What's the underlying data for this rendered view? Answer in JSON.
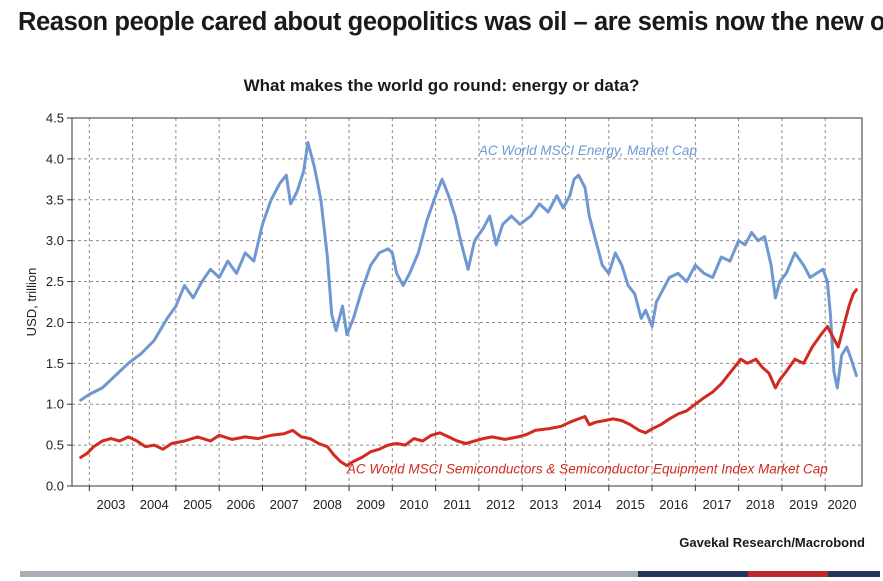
{
  "slide": {
    "title": "Reason people cared about geopolitics was oil – are semis now the new oil?",
    "source": "Gavekal Research/Macrobond"
  },
  "colors": {
    "energy": "#6f98d2",
    "semis": "#d12a1f",
    "grid": "#8c8c8c",
    "footer_gray": "#a9aeb5",
    "footer_navy": "#26355c",
    "footer_red": "#c0272d"
  },
  "chart_data": {
    "type": "line",
    "title": "What makes the world go round: energy or data?",
    "xlabel": "",
    "ylabel": "USD, trillion",
    "xlim": [
      2002.6,
      2020.85
    ],
    "ylim": [
      0,
      4.5
    ],
    "grid": true,
    "x_ticks": [
      "2003",
      "2004",
      "2005",
      "2006",
      "2007",
      "2008",
      "2009",
      "2010",
      "2011",
      "2012",
      "2013",
      "2014",
      "2015",
      "2016",
      "2017",
      "2018",
      "2019",
      "2020"
    ],
    "y_ticks": [
      "0.0",
      "0.5",
      "1.0",
      "1.5",
      "2.0",
      "2.5",
      "3.0",
      "3.5",
      "4.0",
      "4.5"
    ],
    "series": [
      {
        "name": "AC World MSCI Energy, Market Cap",
        "points": [
          [
            2002.8,
            1.05
          ],
          [
            2003.0,
            1.12
          ],
          [
            2003.3,
            1.2
          ],
          [
            2003.6,
            1.35
          ],
          [
            2003.9,
            1.5
          ],
          [
            2004.2,
            1.62
          ],
          [
            2004.5,
            1.78
          ],
          [
            2004.8,
            2.05
          ],
          [
            2005.0,
            2.2
          ],
          [
            2005.2,
            2.45
          ],
          [
            2005.4,
            2.3
          ],
          [
            2005.6,
            2.5
          ],
          [
            2005.8,
            2.65
          ],
          [
            2006.0,
            2.55
          ],
          [
            2006.2,
            2.75
          ],
          [
            2006.4,
            2.6
          ],
          [
            2006.6,
            2.85
          ],
          [
            2006.8,
            2.75
          ],
          [
            2007.0,
            3.2
          ],
          [
            2007.2,
            3.5
          ],
          [
            2007.4,
            3.7
          ],
          [
            2007.55,
            3.8
          ],
          [
            2007.65,
            3.45
          ],
          [
            2007.8,
            3.6
          ],
          [
            2007.95,
            3.85
          ],
          [
            2008.05,
            4.2
          ],
          [
            2008.2,
            3.9
          ],
          [
            2008.35,
            3.5
          ],
          [
            2008.5,
            2.8
          ],
          [
            2008.6,
            2.1
          ],
          [
            2008.7,
            1.9
          ],
          [
            2008.85,
            2.2
          ],
          [
            2008.95,
            1.85
          ],
          [
            2009.1,
            2.05
          ],
          [
            2009.3,
            2.4
          ],
          [
            2009.5,
            2.7
          ],
          [
            2009.7,
            2.85
          ],
          [
            2009.9,
            2.9
          ],
          [
            2010.0,
            2.85
          ],
          [
            2010.1,
            2.6
          ],
          [
            2010.25,
            2.45
          ],
          [
            2010.4,
            2.6
          ],
          [
            2010.6,
            2.85
          ],
          [
            2010.8,
            3.25
          ],
          [
            2011.0,
            3.55
          ],
          [
            2011.15,
            3.75
          ],
          [
            2011.3,
            3.55
          ],
          [
            2011.45,
            3.3
          ],
          [
            2011.6,
            2.95
          ],
          [
            2011.75,
            2.65
          ],
          [
            2011.9,
            3.0
          ],
          [
            2012.1,
            3.15
          ],
          [
            2012.25,
            3.3
          ],
          [
            2012.4,
            2.95
          ],
          [
            2012.55,
            3.2
          ],
          [
            2012.75,
            3.3
          ],
          [
            2012.95,
            3.2
          ],
          [
            2013.2,
            3.3
          ],
          [
            2013.4,
            3.45
          ],
          [
            2013.6,
            3.35
          ],
          [
            2013.8,
            3.55
          ],
          [
            2013.95,
            3.4
          ],
          [
            2014.1,
            3.55
          ],
          [
            2014.2,
            3.75
          ],
          [
            2014.3,
            3.8
          ],
          [
            2014.45,
            3.65
          ],
          [
            2014.55,
            3.3
          ],
          [
            2014.7,
            3.0
          ],
          [
            2014.85,
            2.7
          ],
          [
            2015.0,
            2.6
          ],
          [
            2015.15,
            2.85
          ],
          [
            2015.3,
            2.7
          ],
          [
            2015.45,
            2.45
          ],
          [
            2015.6,
            2.35
          ],
          [
            2015.75,
            2.05
          ],
          [
            2015.85,
            2.15
          ],
          [
            2016.0,
            1.95
          ],
          [
            2016.1,
            2.25
          ],
          [
            2016.25,
            2.4
          ],
          [
            2016.4,
            2.55
          ],
          [
            2016.6,
            2.6
          ],
          [
            2016.8,
            2.5
          ],
          [
            2017.0,
            2.7
          ],
          [
            2017.2,
            2.6
          ],
          [
            2017.4,
            2.55
          ],
          [
            2017.6,
            2.8
          ],
          [
            2017.8,
            2.75
          ],
          [
            2018.0,
            3.0
          ],
          [
            2018.15,
            2.95
          ],
          [
            2018.3,
            3.1
          ],
          [
            2018.45,
            3.0
          ],
          [
            2018.6,
            3.05
          ],
          [
            2018.75,
            2.7
          ],
          [
            2018.85,
            2.3
          ],
          [
            2018.95,
            2.5
          ],
          [
            2019.1,
            2.6
          ],
          [
            2019.3,
            2.85
          ],
          [
            2019.5,
            2.7
          ],
          [
            2019.65,
            2.55
          ],
          [
            2019.8,
            2.6
          ],
          [
            2019.95,
            2.65
          ],
          [
            2020.05,
            2.5
          ],
          [
            2020.12,
            2.1
          ],
          [
            2020.2,
            1.4
          ],
          [
            2020.28,
            1.2
          ],
          [
            2020.38,
            1.6
          ],
          [
            2020.5,
            1.7
          ],
          [
            2020.6,
            1.55
          ],
          [
            2020.72,
            1.35
          ]
        ]
      },
      {
        "name": "AC World MSCI Semiconductors & Semiconductor Equipment Index Market Cap",
        "points": [
          [
            2002.8,
            0.35
          ],
          [
            2002.95,
            0.4
          ],
          [
            2003.1,
            0.48
          ],
          [
            2003.3,
            0.55
          ],
          [
            2003.5,
            0.58
          ],
          [
            2003.7,
            0.55
          ],
          [
            2003.9,
            0.6
          ],
          [
            2004.1,
            0.55
          ],
          [
            2004.3,
            0.48
          ],
          [
            2004.5,
            0.5
          ],
          [
            2004.7,
            0.45
          ],
          [
            2004.9,
            0.52
          ],
          [
            2005.2,
            0.55
          ],
          [
            2005.5,
            0.6
          ],
          [
            2005.8,
            0.55
          ],
          [
            2006.0,
            0.62
          ],
          [
            2006.3,
            0.57
          ],
          [
            2006.6,
            0.6
          ],
          [
            2006.9,
            0.58
          ],
          [
            2007.2,
            0.62
          ],
          [
            2007.5,
            0.64
          ],
          [
            2007.7,
            0.68
          ],
          [
            2007.9,
            0.6
          ],
          [
            2008.1,
            0.58
          ],
          [
            2008.3,
            0.52
          ],
          [
            2008.5,
            0.48
          ],
          [
            2008.65,
            0.38
          ],
          [
            2008.8,
            0.3
          ],
          [
            2008.95,
            0.25
          ],
          [
            2009.1,
            0.3
          ],
          [
            2009.3,
            0.35
          ],
          [
            2009.5,
            0.42
          ],
          [
            2009.7,
            0.45
          ],
          [
            2009.9,
            0.5
          ],
          [
            2010.1,
            0.52
          ],
          [
            2010.3,
            0.5
          ],
          [
            2010.5,
            0.58
          ],
          [
            2010.7,
            0.55
          ],
          [
            2010.9,
            0.62
          ],
          [
            2011.1,
            0.65
          ],
          [
            2011.3,
            0.6
          ],
          [
            2011.5,
            0.55
          ],
          [
            2011.7,
            0.52
          ],
          [
            2011.9,
            0.55
          ],
          [
            2012.1,
            0.58
          ],
          [
            2012.3,
            0.6
          ],
          [
            2012.6,
            0.57
          ],
          [
            2012.9,
            0.6
          ],
          [
            2013.1,
            0.63
          ],
          [
            2013.3,
            0.68
          ],
          [
            2013.6,
            0.7
          ],
          [
            2013.9,
            0.73
          ],
          [
            2014.1,
            0.78
          ],
          [
            2014.3,
            0.82
          ],
          [
            2014.45,
            0.85
          ],
          [
            2014.55,
            0.75
          ],
          [
            2014.7,
            0.78
          ],
          [
            2014.9,
            0.8
          ],
          [
            2015.1,
            0.82
          ],
          [
            2015.3,
            0.8
          ],
          [
            2015.5,
            0.75
          ],
          [
            2015.7,
            0.68
          ],
          [
            2015.85,
            0.65
          ],
          [
            2016.0,
            0.7
          ],
          [
            2016.2,
            0.75
          ],
          [
            2016.4,
            0.82
          ],
          [
            2016.6,
            0.88
          ],
          [
            2016.8,
            0.92
          ],
          [
            2017.0,
            1.0
          ],
          [
            2017.2,
            1.08
          ],
          [
            2017.4,
            1.15
          ],
          [
            2017.6,
            1.25
          ],
          [
            2017.75,
            1.35
          ],
          [
            2017.9,
            1.45
          ],
          [
            2018.05,
            1.55
          ],
          [
            2018.2,
            1.5
          ],
          [
            2018.4,
            1.55
          ],
          [
            2018.55,
            1.45
          ],
          [
            2018.7,
            1.38
          ],
          [
            2018.85,
            1.2
          ],
          [
            2018.95,
            1.3
          ],
          [
            2019.1,
            1.4
          ],
          [
            2019.3,
            1.55
          ],
          [
            2019.5,
            1.5
          ],
          [
            2019.7,
            1.7
          ],
          [
            2019.9,
            1.85
          ],
          [
            2020.05,
            1.95
          ],
          [
            2020.2,
            1.8
          ],
          [
            2020.3,
            1.7
          ],
          [
            2020.45,
            2.0
          ],
          [
            2020.55,
            2.2
          ],
          [
            2020.65,
            2.35
          ],
          [
            2020.72,
            2.4
          ]
        ]
      }
    ],
    "annotations": [
      {
        "text": "AC World MSCI Energy, Market Cap",
        "series": 0,
        "x": 2012.0,
        "y": 4.05
      },
      {
        "text": "AC World MSCI Semiconductors & Semiconductor Equipment Index Market Cap",
        "series": 1,
        "x": 2008.95,
        "y": 0.15
      }
    ]
  }
}
